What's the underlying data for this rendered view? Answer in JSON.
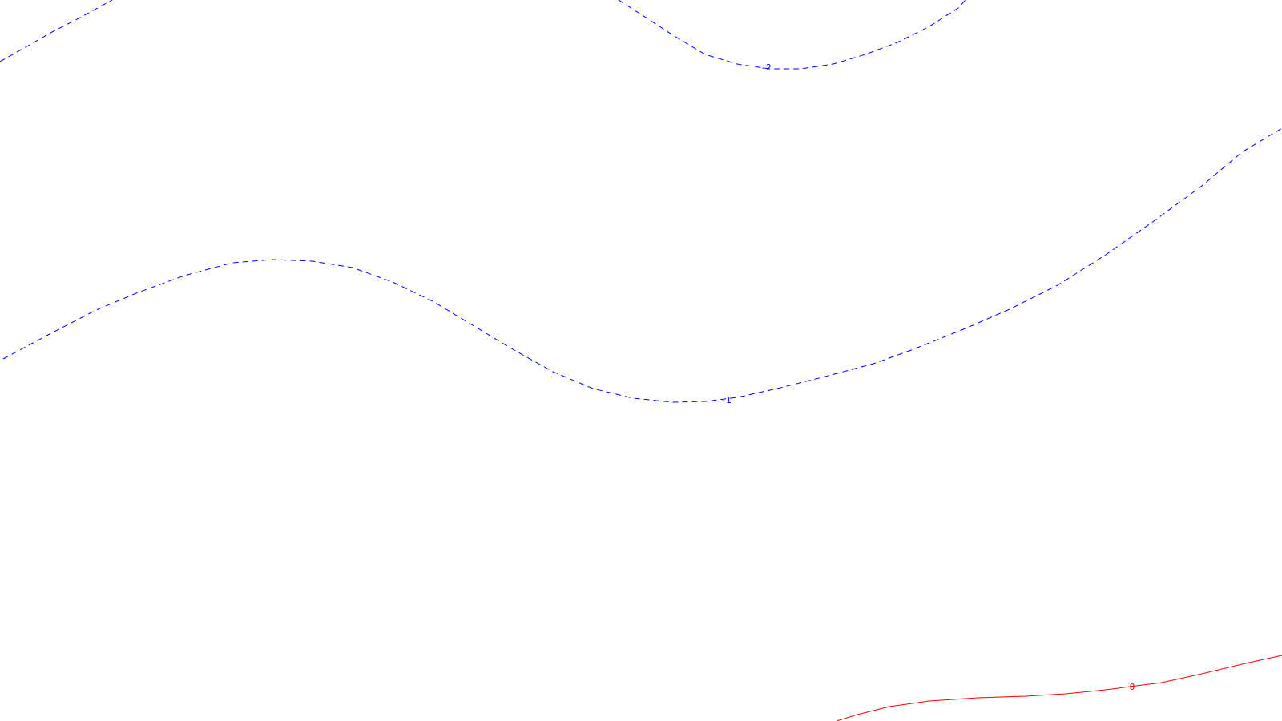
{
  "map": {
    "background": "#ffffff",
    "contours": [
      {
        "id": "contour-2-upper",
        "level": "-2",
        "color": "#0000ff",
        "style": "dashed",
        "label": "-2"
      },
      {
        "id": "contour-2-corner",
        "level": "-2",
        "color": "#0000ff",
        "style": "dashed",
        "label": ""
      },
      {
        "id": "contour-1",
        "level": "-1",
        "color": "#0000ff",
        "style": "dashed",
        "label": "-1"
      },
      {
        "id": "contour-0",
        "level": "0",
        "color": "#ff0000",
        "style": "solid",
        "label": "0"
      }
    ]
  }
}
